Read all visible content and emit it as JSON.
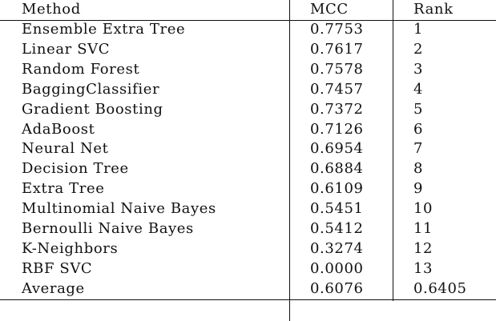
{
  "table": {
    "headers": {
      "method": "Method",
      "mcc": "MCC",
      "rank": "Rank"
    },
    "rows": [
      {
        "method": "Ensemble Extra Tree",
        "mcc": "0.7753",
        "rank": "1"
      },
      {
        "method": "Linear SVC",
        "mcc": "0.7617",
        "rank": "2"
      },
      {
        "method": "Random Forest",
        "mcc": "0.7578",
        "rank": "3"
      },
      {
        "method": "BaggingClassifier",
        "mcc": "0.7457",
        "rank": "4"
      },
      {
        "method": "Gradient Boosting",
        "mcc": "0.7372",
        "rank": "5"
      },
      {
        "method": "AdaBoost",
        "mcc": "0.7126",
        "rank": "6"
      },
      {
        "method": "Neural Net",
        "mcc": "0.6954",
        "rank": "7"
      },
      {
        "method": "Decision Tree",
        "mcc": "0.6884",
        "rank": "8"
      },
      {
        "method": "Extra Tree",
        "mcc": "0.6109",
        "rank": "9"
      },
      {
        "method": "Multinomial Naive Bayes",
        "mcc": "0.5451",
        "rank": "10"
      },
      {
        "method": "Bernoulli Naive Bayes",
        "mcc": "0.5412",
        "rank": "11"
      },
      {
        "method": "K-Neighbors",
        "mcc": "0.3274",
        "rank": "12"
      },
      {
        "method": "RBF SVC",
        "mcc": "0.0000",
        "rank": "13"
      },
      {
        "method": "Average",
        "mcc": "0.6076",
        "rank": "0.6405"
      }
    ]
  }
}
